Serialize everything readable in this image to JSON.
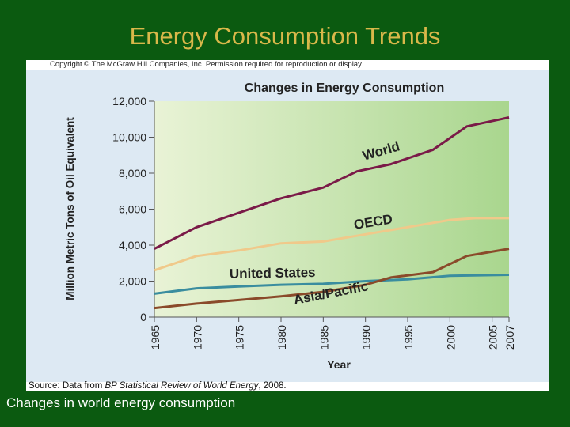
{
  "slide": {
    "title": "Energy Consumption Trends",
    "caption": "Changes in world energy consumption"
  },
  "figure": {
    "copyright": "Copyright © The McGraw Hill Companies, Inc. Permission required for reproduction or display.",
    "source_prefix": "Source: Data from ",
    "source_italic": "BP Statistical Review of World Energy",
    "source_suffix": ", 2008."
  },
  "chart_data": {
    "type": "line",
    "title": "Changes in Energy Consumption",
    "xlabel": "Year",
    "ylabel": "Million Metric Tons of Oil Equivalent",
    "x_ticks": [
      "1965",
      "1970",
      "1975",
      "1980",
      "1985",
      "1990",
      "1995",
      "2000",
      "2005",
      "2007"
    ],
    "y_ticks": [
      "0",
      "2,000",
      "4,000",
      "6,000",
      "8,000",
      "10,000",
      "12,000"
    ],
    "xlim": [
      1965,
      2007
    ],
    "ylim": [
      0,
      12000
    ],
    "series": [
      {
        "name": "World",
        "color": "#7a1a48",
        "x": [
          1965,
          1970,
          1975,
          1980,
          1985,
          1989,
          1993,
          1998,
          2002,
          2007
        ],
        "y": [
          3800,
          5000,
          5800,
          6600,
          7200,
          8100,
          8500,
          9300,
          10600,
          11100
        ]
      },
      {
        "name": "OECD",
        "color": "#f0c98a",
        "x": [
          1965,
          1970,
          1975,
          1980,
          1985,
          1990,
          1995,
          2000,
          2003,
          2007
        ],
        "y": [
          2600,
          3400,
          3700,
          4100,
          4200,
          4600,
          5000,
          5400,
          5500,
          5500
        ]
      },
      {
        "name": "United States",
        "color": "#3a8d9f",
        "x": [
          1965,
          1970,
          1975,
          1980,
          1985,
          1990,
          1995,
          2000,
          2007
        ],
        "y": [
          1300,
          1600,
          1700,
          1800,
          1850,
          2000,
          2100,
          2300,
          2350
        ]
      },
      {
        "name": "Asia/Pacific",
        "color": "#8a4a2a",
        "x": [
          1965,
          1970,
          1975,
          1980,
          1985,
          1990,
          1993,
          1998,
          2002,
          2007
        ],
        "y": [
          500,
          750,
          950,
          1150,
          1400,
          1800,
          2200,
          2500,
          3400,
          3800
        ]
      }
    ],
    "grid": false,
    "legend": "inline labels along lines"
  }
}
